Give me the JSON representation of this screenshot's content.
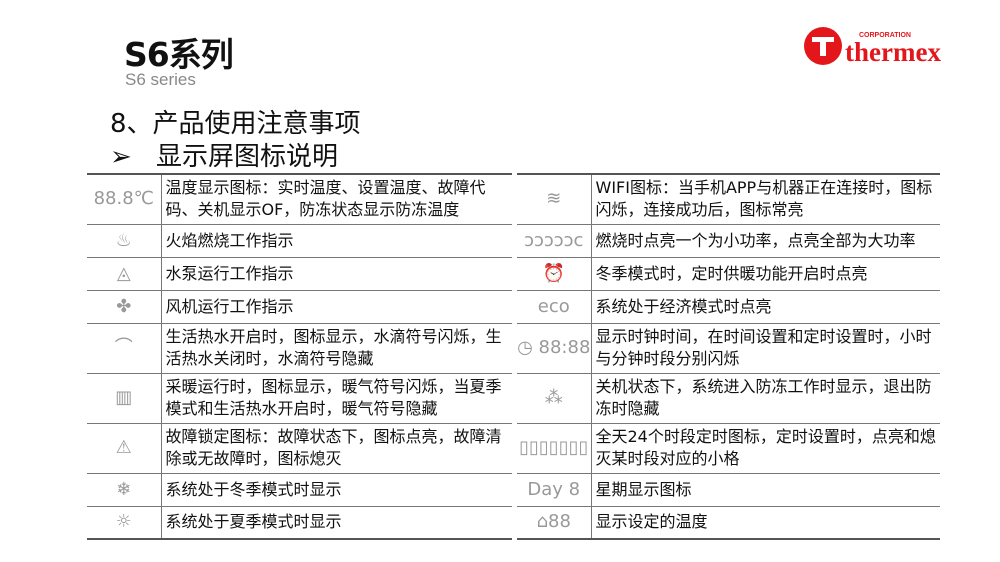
{
  "header": {
    "title": "S6系列",
    "subtitle": "S6 series",
    "section": "8、产品使用注意事项",
    "bullet": "➢",
    "subsection": "显示屏图标说明"
  },
  "logo": {
    "text": "thermex",
    "tag": "CORPORATION",
    "color": "#e3171b"
  },
  "left_rows": [
    {
      "icon": "temperature-digits-icon",
      "glyph": "88.8℃",
      "text": "温度显示图标：实时温度、设置温度、故障代码、关机显示OF，防冻状态显示防冻温度"
    },
    {
      "icon": "flame-icon",
      "glyph": "♨",
      "text": "火焰燃烧工作指示"
    },
    {
      "icon": "pump-icon",
      "glyph": "◬",
      "text": "水泵运行工作指示"
    },
    {
      "icon": "fan-icon",
      "glyph": "✤",
      "text": "风机运行工作指示"
    },
    {
      "icon": "shower-icon",
      "glyph": "⌒",
      "text": "生活热水开启时，图标显示，水滴符号闪烁，生活热水关闭时，水滴符号隐藏"
    },
    {
      "icon": "radiator-icon",
      "glyph": "▥",
      "text": "采暖运行时，图标显示，暖气符号闪烁，当夏季模式和生活热水开启时，暖气符号隐藏"
    },
    {
      "icon": "warning-icon",
      "glyph": "⚠",
      "text": "故障锁定图标：故障状态下，图标点亮，故障清除或无故障时，图标熄灭"
    },
    {
      "icon": "snowflake-icon",
      "glyph": "❄",
      "text": "系统处于冬季模式时显示"
    },
    {
      "icon": "sun-icon",
      "glyph": "☼",
      "text": "系统处于夏季模式时显示"
    }
  ],
  "right_rows": [
    {
      "icon": "wifi-icon",
      "glyph": "≋",
      "text": "WIFI图标：当手机APP与机器正在连接时，图标闪烁，连接成功后，图标常亮"
    },
    {
      "icon": "power-level-icon",
      "glyph": "ↄↄↄↄↄc",
      "text": "燃烧时点亮一个为小功率，点亮全部为大功率"
    },
    {
      "icon": "alarm-clock-icon",
      "glyph": "⏰",
      "text": "冬季模式时，定时供暖功能开启时点亮"
    },
    {
      "icon": "eco-icon",
      "glyph": "eco",
      "text": "系统处于经济模式时点亮"
    },
    {
      "icon": "clock-digits-icon",
      "glyph": "◷ 88:88",
      "text": "显示时钟时间，在时间设置和定时设置时，小时与分钟时段分别闪烁"
    },
    {
      "icon": "antifreeze-icon",
      "glyph": "⁂",
      "text": "关机状态下，系统进入防冻工作时显示，退出防冻时隐藏"
    },
    {
      "icon": "timer-bar-icon",
      "glyph": "▯▯▯▯▯▯▯",
      "text": "全天24个时段定时图标，定时设置时，点亮和熄灭某时段对应的小格"
    },
    {
      "icon": "day-icon",
      "glyph": "Day 8",
      "text": "星期显示图标"
    },
    {
      "icon": "set-temperature-icon",
      "glyph": "⌂88",
      "text": "显示设定的温度"
    }
  ]
}
